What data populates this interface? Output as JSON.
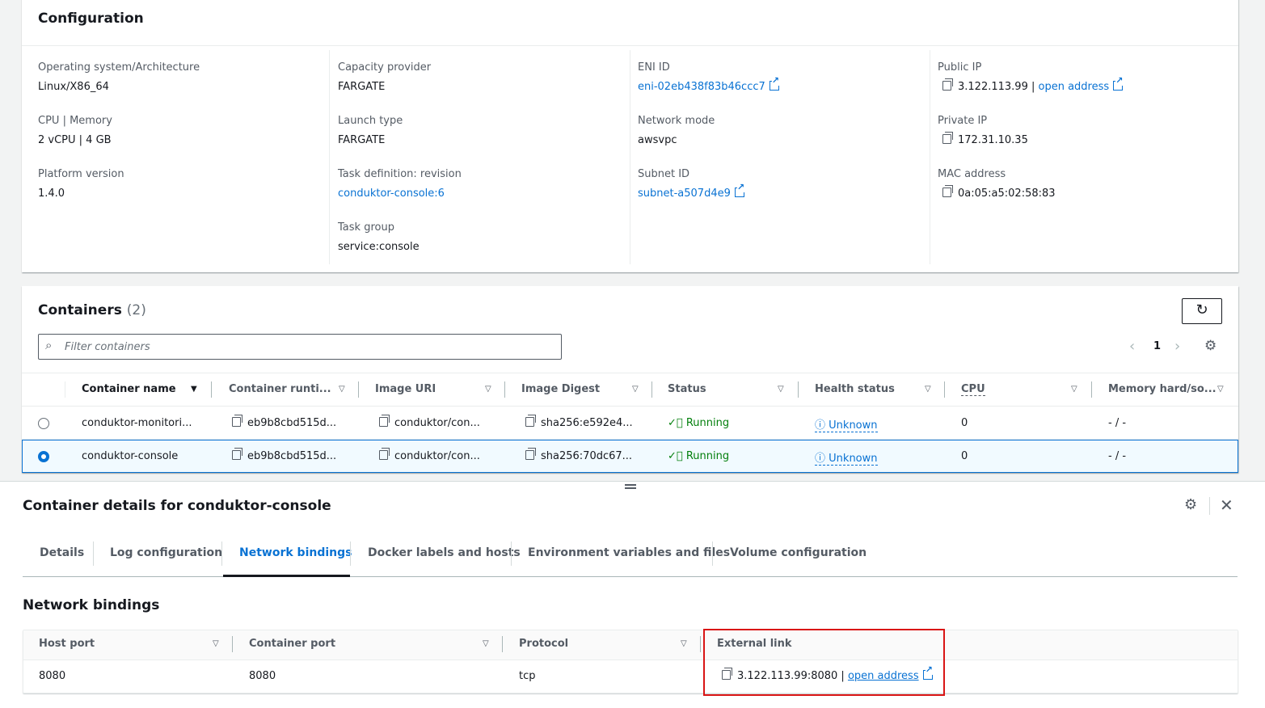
{
  "configuration": {
    "title": "Configuration",
    "columns": [
      [
        {
          "label": "Operating system/Architecture",
          "value": "Linux/X86_64"
        },
        {
          "label": "CPU | Memory",
          "value": "2 vCPU | 4 GB"
        },
        {
          "label": "Platform version",
          "value": "1.4.0"
        }
      ],
      [
        {
          "label": "Capacity provider",
          "value": "FARGATE"
        },
        {
          "label": "Launch type",
          "value": "FARGATE"
        },
        {
          "label": "Task definition: revision",
          "value": "conduktor-console:6"
        },
        {
          "label": "Task group",
          "value": "service:console"
        }
      ],
      [
        {
          "label": "ENI ID",
          "value": "eni-02eb438f83b46ccc7"
        },
        {
          "label": "Network mode",
          "value": "awsvpc"
        },
        {
          "label": "Subnet ID",
          "value": "subnet-a507d4e9"
        }
      ],
      [
        {
          "label": "Public IP",
          "value": "3.122.113.99 |",
          "link": "open address"
        },
        {
          "label": "Private IP",
          "value": "172.31.10.35"
        },
        {
          "label": "MAC address",
          "value": "0a:05:a5:02:58:83"
        }
      ]
    ]
  },
  "containers": {
    "title": "Containers",
    "count": "(2)",
    "filter_placeholder": "Filter containers",
    "page": "1",
    "headers": [
      "Container name",
      "Container runti...",
      "Image URI",
      "Image Digest",
      "Status",
      "Health status",
      "CPU",
      "Memory hard/so..."
    ],
    "rows": [
      {
        "name": "conduktor-monitori...",
        "runtime": "eb9b8cbd515d...",
        "uri": "conduktor/con...",
        "digest": "sha256:e592e4...",
        "status": "Running",
        "health": "Unknown",
        "cpu": "0",
        "memory": "- / -",
        "selected": false
      },
      {
        "name": "conduktor-console",
        "runtime": "eb9b8cbd515d...",
        "uri": "conduktor/con...",
        "digest": "sha256:70dc67...",
        "status": "Running",
        "health": "Unknown",
        "cpu": "0",
        "memory": "- / -",
        "selected": true
      }
    ]
  },
  "details": {
    "title": "Container details for conduktor-console",
    "tabs": [
      "Details",
      "Log configuration",
      "Network bindings",
      "Docker labels and hosts",
      "Environment variables and files",
      "Volume configuration"
    ],
    "active_tab": "Network bindings",
    "section_title": "Network bindings",
    "headers": [
      "Host port",
      "Container port",
      "Protocol",
      "External link"
    ],
    "row": {
      "host_port": "8080",
      "container_port": "8080",
      "protocol": "tcp",
      "external": "3.122.113.99:8080 |",
      "link": "open address"
    }
  },
  "colors": {
    "accent": "#0972d3",
    "success": "#037f0c",
    "highlight": "#d91515"
  }
}
